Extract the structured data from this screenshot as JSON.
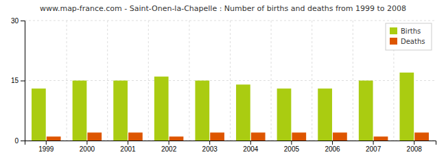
{
  "chart_data": {
    "type": "bar",
    "title": "www.map-france.com - Saint-Onen-la-Chapelle : Number of births and deaths from 1999 to 2008",
    "categories": [
      "1999",
      "2000",
      "2001",
      "2002",
      "2003",
      "2004",
      "2005",
      "2006",
      "2007",
      "2008"
    ],
    "series": [
      {
        "name": "Births",
        "color": "#aacc11",
        "values": [
          13,
          15,
          15,
          16,
          15,
          14,
          13,
          13,
          15,
          17
        ]
      },
      {
        "name": "Deaths",
        "color": "#dd5500",
        "values": [
          1,
          2,
          2,
          1,
          2,
          2,
          2,
          2,
          1,
          2
        ]
      }
    ],
    "ylim": [
      0,
      30
    ],
    "yticks": [
      0,
      15,
      30
    ],
    "grid": true,
    "legend": "upper right"
  }
}
